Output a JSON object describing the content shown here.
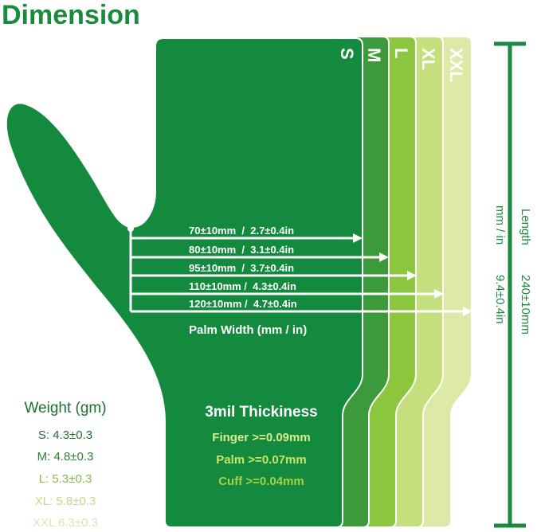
{
  "title": "Dimension",
  "sizes": [
    {
      "label": "S",
      "color": "#148a3e"
    },
    {
      "label": "M",
      "color": "#3d9a3a"
    },
    {
      "label": "L",
      "color": "#8cc63f"
    },
    {
      "label": "XL",
      "color": "#c5df7e"
    },
    {
      "label": "XXL",
      "color": "#dde9a6"
    }
  ],
  "palm_width": {
    "title": "Palm Width (mm / in)",
    "rows": [
      "70±10mm  /  2.7±0.4in",
      "80±10mm  /  3.1±0.4in",
      "95±10mm  /  3.7±0.4in",
      "110±10mm /  4.3±0.4in",
      "120±10mm /  4.7±0.4in"
    ]
  },
  "length": {
    "label": "Length",
    "unit": "mm / in",
    "mm": "240±10mm",
    "in": "9.4±0.4in"
  },
  "weight": {
    "title": "Weight (gm)",
    "rows": [
      {
        "text": "S: 4.3±0.3",
        "color": "#1f6e35"
      },
      {
        "text": "M: 4.8±0.3",
        "color": "#2f7d32"
      },
      {
        "text": "L: 5.3±0.3",
        "color": "#8fb54a"
      },
      {
        "text": "XL: 5.8±0.3",
        "color": "#c9d88f"
      },
      {
        "text": "XXL 6.3±0.3",
        "color": "#dde3b4"
      }
    ]
  },
  "thickness": {
    "title": "3mil Thickiness",
    "rows": [
      {
        "text": "Finger >=0.09mm",
        "color": "#d9ef8a"
      },
      {
        "text": "Palm >=0.07mm",
        "color": "#c8e66a"
      },
      {
        "text": "Cuff >=0.04mm",
        "color": "#9fd44a"
      }
    ]
  },
  "accent": "#1a8a3e"
}
